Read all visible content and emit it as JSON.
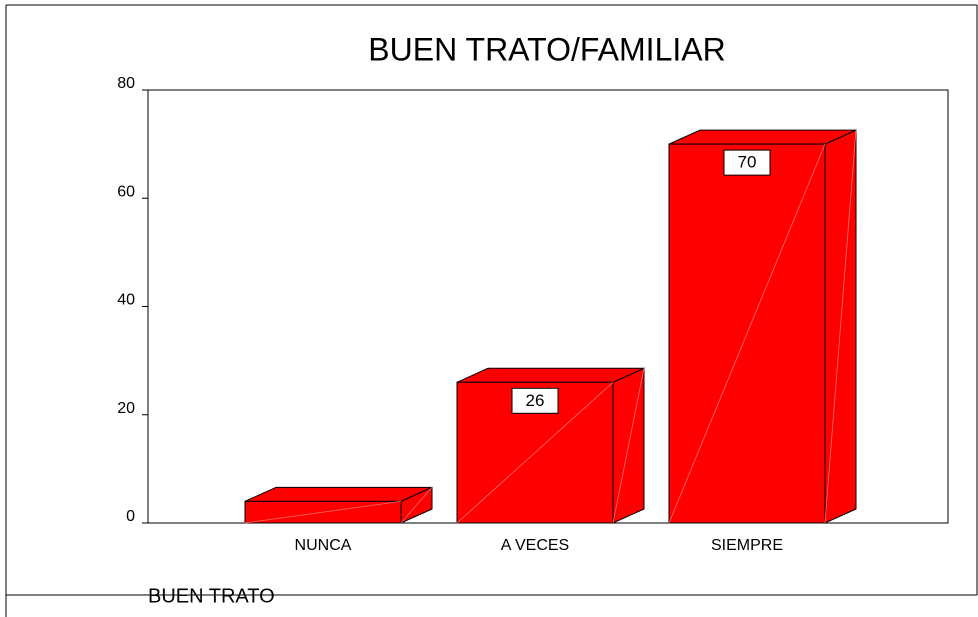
{
  "chart_data": {
    "type": "bar3d",
    "title": "BUEN TRATO/FAMILIAR",
    "x_label": "BUEN TRATO",
    "categories": [
      "NUNCA",
      "A VECES",
      "SIEMPRE"
    ],
    "values": [
      4,
      26,
      70
    ],
    "value_labels": [
      null,
      "26",
      "70"
    ],
    "color": "#ff0000",
    "ylim": [
      0,
      80
    ],
    "yticks": [
      0,
      20,
      40,
      60,
      80
    ]
  }
}
